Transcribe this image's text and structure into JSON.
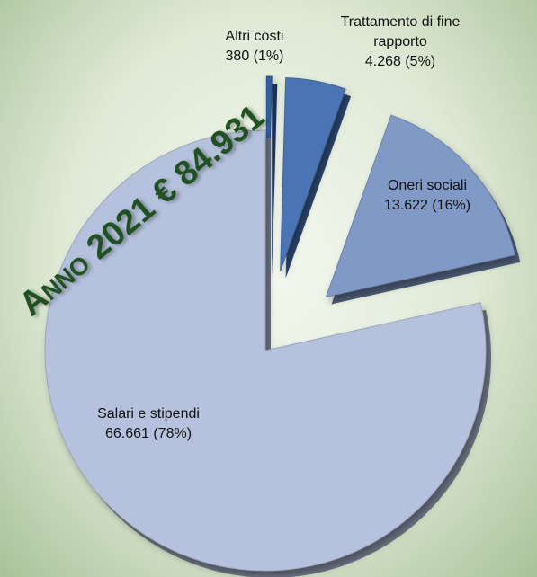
{
  "chart_data": {
    "type": "pie",
    "title": "Anno 2021 € 84.931",
    "categories": [
      "Altri costi",
      "Trattamento di fine rapporto",
      "Oneri sociali",
      "Salari e stipendi"
    ],
    "values": [
      380,
      4268,
      13622,
      66661
    ],
    "value_labels": [
      "380 (1%)",
      "4.268 (5%)",
      "13.622 (16%)",
      "66.661 (78%)"
    ],
    "colors": [
      "#2f5fa5",
      "#4a74b4",
      "#8199c6",
      "#b6c2dd"
    ]
  }
}
